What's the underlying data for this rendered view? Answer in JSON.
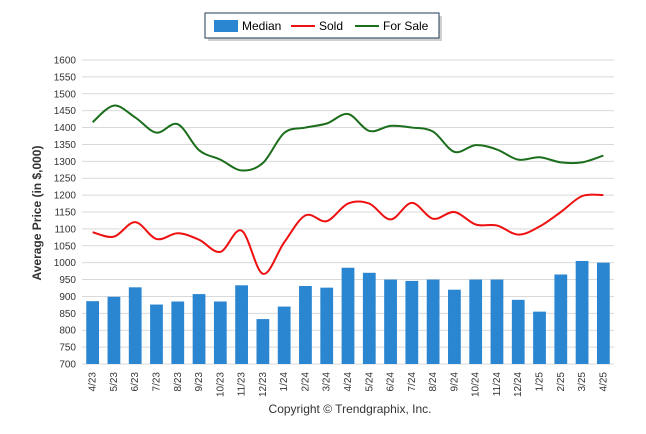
{
  "chart_data": {
    "type": "bar",
    "title": "",
    "xlabel": "",
    "ylabel": "Average Price (in $,000)",
    "ylim": [
      700,
      1600
    ],
    "yticks": [
      700,
      750,
      800,
      850,
      900,
      950,
      1000,
      1050,
      1100,
      1150,
      1200,
      1250,
      1300,
      1350,
      1400,
      1450,
      1500,
      1550,
      1600
    ],
    "grid": true,
    "legend_position": "top-center",
    "categories": [
      "4/23",
      "5/23",
      "6/23",
      "7/23",
      "8/23",
      "9/23",
      "10/23",
      "11/23",
      "12/23",
      "1/24",
      "2/24",
      "3/24",
      "4/24",
      "5/24",
      "6/24",
      "7/24",
      "8/24",
      "9/24",
      "10/24",
      "11/24",
      "12/24",
      "1/25",
      "2/25",
      "3/25",
      "4/25"
    ],
    "series": [
      {
        "name": "Median",
        "type": "bar",
        "color": "#2a86d1",
        "values": [
          886,
          899,
          927,
          876,
          885,
          907,
          885,
          933,
          833,
          870,
          931,
          926,
          985,
          970,
          950,
          946,
          950,
          920,
          950,
          950,
          890,
          855,
          965,
          1005,
          1000
        ]
      },
      {
        "name": "Sold",
        "type": "line",
        "color": "#ee1111",
        "values": [
          1090,
          1077,
          1120,
          1070,
          1087,
          1068,
          1032,
          1095,
          967,
          1060,
          1140,
          1123,
          1175,
          1175,
          1128,
          1177,
          1130,
          1150,
          1113,
          1110,
          1083,
          1107,
          1150,
          1197,
          1200
        ]
      },
      {
        "name": "For Sale",
        "type": "line",
        "color": "#1b6e1b",
        "values": [
          1416,
          1465,
          1430,
          1385,
          1410,
          1333,
          1305,
          1273,
          1295,
          1384,
          1400,
          1412,
          1440,
          1390,
          1405,
          1400,
          1388,
          1328,
          1348,
          1335,
          1305,
          1312,
          1297,
          1297,
          1317
        ]
      }
    ]
  },
  "legend": {
    "median": "Median",
    "sold": "Sold",
    "for_sale": "For Sale"
  },
  "footer": {
    "copyright": "Copyright © Trendgraphix, Inc."
  }
}
